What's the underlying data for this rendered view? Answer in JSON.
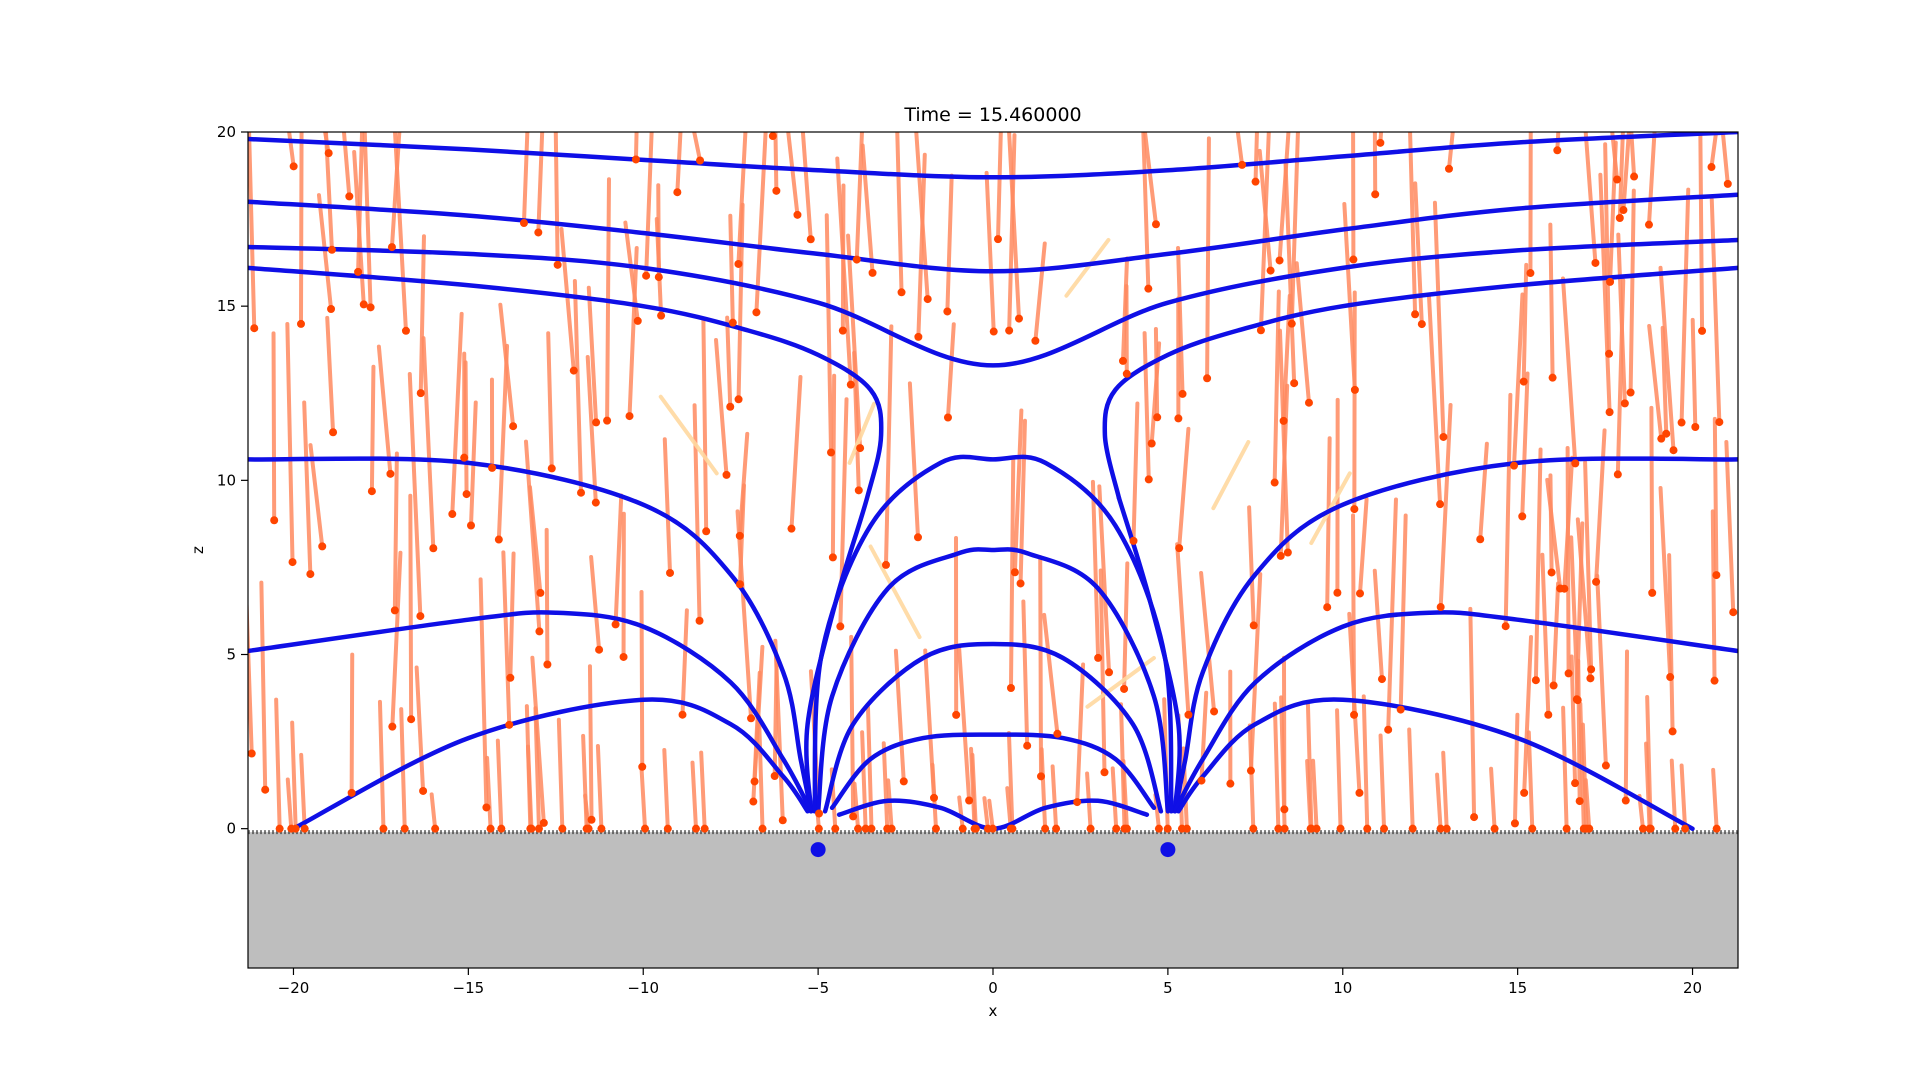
{
  "chart_data": {
    "type": "line",
    "title": "Time = 15.460000",
    "xlabel": "x",
    "ylabel": "z",
    "xlim": [
      -21.3,
      21.3
    ],
    "ylim": [
      -4.0,
      20.0
    ],
    "xticks": [
      -20,
      -15,
      -10,
      -5,
      0,
      5,
      10,
      15,
      20
    ],
    "yticks": [
      0,
      5,
      10,
      15,
      20
    ],
    "grid": false,
    "legend": "none",
    "colors": {
      "field_line": "#0f0fe6",
      "particle": "#ff4500",
      "trail": "#ff8a60",
      "faint_trail": "#ffd9a0",
      "ground": "#bebebe",
      "source": "#0f0fe6"
    },
    "ground": {
      "top": -0.1,
      "bottom": -4.0
    },
    "sources": [
      {
        "x": -5.0,
        "z": -0.6
      },
      {
        "x": 5.0,
        "z": -0.6
      }
    ],
    "field_lines": [
      {
        "x": [
          -21.3,
          -15,
          -10,
          -5,
          0,
          5,
          10,
          15,
          21.3
        ],
        "z": [
          19.8,
          19.5,
          19.2,
          18.9,
          18.7,
          18.9,
          19.3,
          19.7,
          20.0
        ]
      },
      {
        "x": [
          -21.3,
          -15,
          -10,
          -5,
          0,
          5,
          10,
          15,
          21.3
        ],
        "z": [
          18.0,
          17.6,
          17.1,
          16.5,
          16.0,
          16.5,
          17.2,
          17.8,
          18.2
        ]
      },
      {
        "x": [
          -21.3,
          -15,
          -10,
          -5,
          0,
          5,
          10,
          15,
          21.3
        ],
        "z": [
          16.7,
          16.5,
          16.1,
          15.1,
          13.3,
          15.1,
          16.1,
          16.6,
          16.9
        ]
      },
      {
        "x": [
          -21.3,
          -15,
          -10,
          -7,
          -5,
          -3.5,
          -3.2,
          -3.6,
          -4.5,
          -5.3,
          -5.2
        ],
        "z": [
          16.1,
          15.6,
          15.0,
          14.3,
          13.6,
          12.6,
          11.3,
          9.5,
          6.5,
          3.0,
          0.5
        ]
      },
      {
        "x": [
          3.6,
          3.2,
          3.5,
          5,
          7,
          10,
          15,
          21.3
        ],
        "z": [
          9.5,
          11.3,
          12.6,
          13.6,
          14.3,
          15.0,
          15.6,
          16.1
        ]
      },
      {
        "x": [
          3.6,
          4.5,
          5.3,
          5.2
        ],
        "z": [
          9.5,
          6.5,
          3.0,
          0.5
        ]
      },
      {
        "x": [
          -21.3,
          -15,
          -10,
          -7.5,
          -6,
          -5.5,
          -5.2
        ],
        "z": [
          10.6,
          10.5,
          9.3,
          7.3,
          4.5,
          2.0,
          0.5
        ]
      },
      {
        "x": [
          5.2,
          5.5,
          6,
          7.5,
          10,
          15,
          21.3
        ],
        "z": [
          0.5,
          2.0,
          4.5,
          7.3,
          9.3,
          10.5,
          10.6
        ]
      },
      {
        "x": [
          -21.3,
          -15,
          -12.5,
          -10,
          -7.5,
          -6,
          -5.2
        ],
        "z": [
          5.1,
          6.0,
          6.2,
          5.8,
          4.2,
          2.0,
          0.5
        ]
      },
      {
        "x": [
          5.2,
          6,
          7.5,
          10,
          12.5,
          15,
          21.3
        ],
        "z": [
          0.5,
          2.0,
          4.2,
          5.8,
          6.2,
          6.0,
          5.1
        ]
      },
      {
        "x": [
          -20,
          -15,
          -10,
          -7.5,
          -6,
          -5.3
        ],
        "z": [
          0.0,
          2.6,
          3.7,
          3.0,
          1.5,
          0.5
        ]
      },
      {
        "x": [
          5.3,
          6,
          7.5,
          10,
          15,
          20
        ],
        "z": [
          0.5,
          1.5,
          3.0,
          3.7,
          2.6,
          0.0
        ]
      },
      {
        "x": [
          -5.1,
          -4.9,
          -3.5,
          -1.5,
          0,
          1.5,
          3.5,
          4.9,
          5.1
        ],
        "z": [
          0.5,
          5.0,
          8.7,
          10.5,
          10.6,
          10.5,
          8.7,
          5.0,
          0.5
        ]
      },
      {
        "x": [
          -5.0,
          -4.6,
          -3,
          -1,
          0,
          1,
          3,
          4.6,
          5.0
        ],
        "z": [
          0.5,
          3.8,
          6.9,
          7.9,
          8.0,
          7.9,
          6.9,
          3.8,
          0.5
        ]
      },
      {
        "x": [
          -4.8,
          -4,
          -2,
          0,
          2,
          4,
          4.8
        ],
        "z": [
          0.5,
          3.0,
          4.9,
          5.3,
          4.9,
          3.0,
          0.5
        ]
      },
      {
        "x": [
          -4.6,
          -3.5,
          -2,
          0,
          2,
          3.5,
          4.6
        ],
        "z": [
          0.6,
          2.0,
          2.6,
          2.7,
          2.6,
          2.0,
          0.6
        ]
      },
      {
        "x": [
          -4.4,
          -3,
          -1.5,
          0,
          1.5,
          3,
          4.4
        ],
        "z": [
          0.4,
          0.8,
          0.6,
          0.0,
          0.6,
          0.8,
          0.4
        ]
      }
    ]
  }
}
